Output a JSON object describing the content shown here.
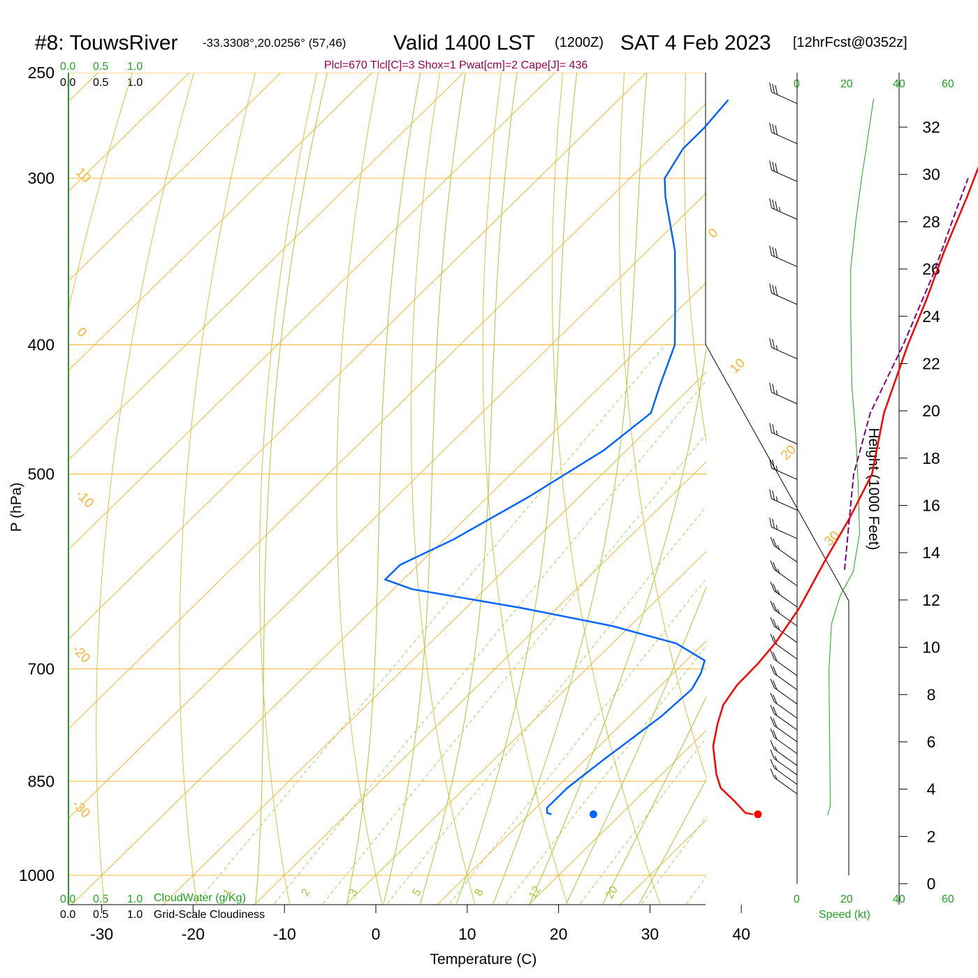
{
  "header": {
    "station": "#8: TouwsRiver",
    "coords": "-33.3308°,20.0256° (57,46)",
    "valid": "Valid 1400 LST",
    "zulu": "(1200Z)",
    "date": "SAT 4 Feb 2023",
    "forecast": "[12hrFcst@0352z]",
    "params": "Plcl=670 Tlcl[C]=3 Shox=1 Pwat[cm]=2 Cape[J]= 436"
  },
  "colors": {
    "temperature": "#ff0000",
    "dewpoint": "#0066ff",
    "parcel": "#800080",
    "isotherm": "#f5b433",
    "dry_adiabat": "#d9c040",
    "mixing_ratio": "#a8d060",
    "moist_adiabat": "#9ccc33",
    "cloud_axis": "#1fa31f",
    "height_curve": "#1fa31f"
  },
  "axes": {
    "x_label": "Temperature (C)",
    "y_label": "P (hPa)",
    "height_label": "Height (1000 Feet)",
    "speed_label": "Speed (kt)",
    "cloudwater_label": "CloudWater (g/Kg)",
    "cloudiness_label": "Grid-Scale Cloudiness",
    "cloud_ticks": [
      "0.0",
      "0.5",
      "1.0"
    ],
    "speed_ticks": [
      "0",
      "20",
      "40",
      "60"
    ]
  },
  "chart_data": {
    "type": "line",
    "title": "#8: TouwsRiver  Valid 1400 LST (1200Z) SAT 4 Feb 2023",
    "xlabel": "Temperature (C)",
    "ylabel": "P (hPa)",
    "x_ticks": [
      -30,
      -20,
      -10,
      0,
      10,
      20,
      30,
      40
    ],
    "p_ticks": [
      250,
      300,
      400,
      500,
      700,
      850,
      1000
    ],
    "height_ticks": [
      0,
      2,
      4,
      6,
      8,
      10,
      12,
      14,
      16,
      18,
      20,
      22,
      24,
      26,
      28,
      30,
      32
    ],
    "isotherm_labels": [
      {
        "text": "10",
        "temp": 10
      },
      {
        "text": "0",
        "temp": 0
      },
      {
        "text": "-10",
        "temp": -10
      },
      {
        "text": "-20",
        "temp": -20
      },
      {
        "text": "-30",
        "temp": -30
      },
      {
        "text": "0",
        "temp": 0
      },
      {
        "text": "10",
        "temp": 10
      },
      {
        "text": "20",
        "temp": 20
      },
      {
        "text": "30",
        "temp": 30
      }
    ],
    "mixing_ratio_labels": [
      "1",
      "2",
      "3",
      "5",
      "8",
      "12",
      "20"
    ],
    "series": [
      {
        "name": "Temperature",
        "points": [
          [
            34.5,
            900
          ],
          [
            33.5,
            898
          ],
          [
            31,
            880
          ],
          [
            28,
            860
          ],
          [
            26,
            840
          ],
          [
            22.5,
            800
          ],
          [
            20.5,
            770
          ],
          [
            19,
            745
          ],
          [
            18.3,
            720
          ],
          [
            18.2,
            695
          ],
          [
            17.8,
            670
          ],
          [
            16.5,
            630
          ],
          [
            14,
            580
          ],
          [
            12,
            540
          ],
          [
            9.5,
            500
          ],
          [
            4,
            450
          ],
          [
            -1,
            400
          ],
          [
            -4,
            370
          ],
          [
            -7.5,
            340
          ],
          [
            -11,
            310
          ],
          [
            -13,
            295
          ],
          [
            -15.5,
            275
          ],
          [
            -17.2,
            260
          ]
        ]
      },
      {
        "name": "Dewpoint",
        "points": [
          [
            12.4,
            900
          ],
          [
            11.8,
            898
          ],
          [
            11.2,
            890
          ],
          [
            11.2,
            860
          ],
          [
            12,
            820
          ],
          [
            13.5,
            760
          ],
          [
            13.8,
            725
          ],
          [
            13,
            705
          ],
          [
            12,
            690
          ],
          [
            7,
            670
          ],
          [
            -2,
            650
          ],
          [
            -14,
            630
          ],
          [
            -28,
            610
          ],
          [
            -32,
            600
          ],
          [
            -32,
            585
          ],
          [
            -29,
            560
          ],
          [
            -25.5,
            520
          ],
          [
            -22.5,
            480
          ],
          [
            -21.5,
            450
          ],
          [
            -23.5,
            430
          ],
          [
            -26.5,
            400
          ],
          [
            -31.5,
            370
          ],
          [
            -37,
            340
          ],
          [
            -44,
            310
          ],
          [
            -46.2,
            300
          ],
          [
            -47.5,
            285
          ],
          [
            -47.5,
            275
          ],
          [
            -48,
            262
          ]
        ]
      },
      {
        "name": "Parcel",
        "points": [
          [
            17.2,
            590
          ],
          [
            12,
            540
          ],
          [
            7.5,
            500
          ],
          [
            2.5,
            450
          ],
          [
            -1.5,
            400
          ],
          [
            -6,
            355
          ],
          [
            -11,
            315
          ],
          [
            -13,
            300
          ]
        ]
      }
    ],
    "surface_temperature": 35,
    "surface_dewpoint": 17,
    "surface_pressure": 900,
    "height_profile": [
      [
        12,
        2.9
      ],
      [
        13,
        3.3
      ],
      [
        12.8,
        6
      ],
      [
        12.5,
        9
      ],
      [
        13.5,
        11
      ],
      [
        17,
        12.2
      ],
      [
        22,
        13.2
      ],
      [
        24.5,
        14.8
      ],
      [
        24,
        16.8
      ],
      [
        23,
        19
      ],
      [
        21.5,
        21
      ],
      [
        21,
        24
      ],
      [
        21,
        26
      ],
      [
        23,
        28
      ],
      [
        25.5,
        30
      ],
      [
        27,
        31
      ],
      [
        30,
        33.2
      ]
    ],
    "wind_barbs": [
      {
        "height": 33,
        "speed": 30
      },
      {
        "height": 31.3,
        "speed": 30
      },
      {
        "height": 29.7,
        "speed": 30
      },
      {
        "height": 28.1,
        "speed": 35
      },
      {
        "height": 26.1,
        "speed": 30
      },
      {
        "height": 24.5,
        "speed": 30
      },
      {
        "height": 22.2,
        "speed": 25
      },
      {
        "height": 20.3,
        "speed": 25
      },
      {
        "height": 18.6,
        "speed": 25
      },
      {
        "height": 17.1,
        "speed": 25
      },
      {
        "height": 15.8,
        "speed": 25
      },
      {
        "height": 14.6,
        "speed": 25
      },
      {
        "height": 13.6,
        "speed": 25
      },
      {
        "height": 12.6,
        "speed": 25
      },
      {
        "height": 11.7,
        "speed": 25
      },
      {
        "height": 10.9,
        "speed": 25
      },
      {
        "height": 10.2,
        "speed": 25
      },
      {
        "height": 9.5,
        "speed": 20
      },
      {
        "height": 8.8,
        "speed": 20
      },
      {
        "height": 8.2,
        "speed": 20
      },
      {
        "height": 7.6,
        "speed": 20
      },
      {
        "height": 7.0,
        "speed": 20
      },
      {
        "height": 6.5,
        "speed": 20
      },
      {
        "height": 6.0,
        "speed": 20
      },
      {
        "height": 5.5,
        "speed": 20
      },
      {
        "height": 5.0,
        "speed": 15
      },
      {
        "height": 4.6,
        "speed": 15
      },
      {
        "height": 4.2,
        "speed": 15
      },
      {
        "height": 3.8,
        "speed": 15
      }
    ]
  }
}
